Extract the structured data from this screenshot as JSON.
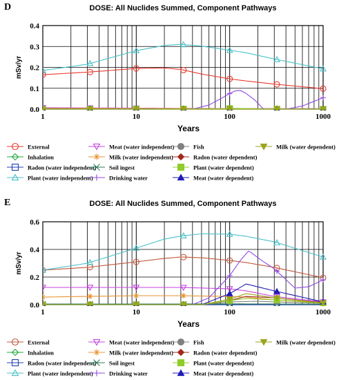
{
  "chart_data": [
    {
      "panel_letter": "D",
      "type": "line",
      "title": "DOSE: All Nuclides Summed, Component Pathways",
      "xlabel": "Years",
      "ylabel": "mSv/yr",
      "xscale": "log",
      "xlim": [
        1,
        1000
      ],
      "ylim": [
        0,
        0.4
      ],
      "x_ticks": [
        1,
        10,
        100,
        1000
      ],
      "y_ticks": [
        0.0,
        0.1,
        0.2,
        0.3,
        0.4
      ],
      "grid": true,
      "legend_position": "bottom",
      "series": [
        {
          "name": "External",
          "color": "#e8392f",
          "marker": "circle",
          "x": [
            1,
            3,
            10,
            20,
            30,
            50,
            100,
            150,
            300,
            1000
          ],
          "y": [
            0.165,
            0.177,
            0.195,
            0.197,
            0.19,
            0.168,
            0.145,
            0.135,
            0.12,
            0.098
          ]
        },
        {
          "name": "Inhalation",
          "color": "#1fa83a",
          "marker": "diamond",
          "x": [
            1,
            1000
          ],
          "y": [
            0.001,
            0.001
          ]
        },
        {
          "name": "Radon (water independent)",
          "color": "#1d3fb5",
          "marker": "square",
          "x": [
            1,
            1000
          ],
          "y": [
            0.0,
            0.0
          ]
        },
        {
          "name": "Plant (water independent)",
          "color": "#49c1c8",
          "marker": "triangle-up",
          "x": [
            1,
            3,
            10,
            20,
            30,
            50,
            100,
            150,
            300,
            1000
          ],
          "y": [
            0.185,
            0.215,
            0.28,
            0.305,
            0.31,
            0.302,
            0.282,
            0.27,
            0.24,
            0.193
          ]
        },
        {
          "name": "Meat (water independent)",
          "color": "#c645e0",
          "marker": "triangle-down",
          "x": [
            1,
            3,
            10,
            30,
            100,
            1000
          ],
          "y": [
            0.007,
            0.006,
            0.005,
            0.004,
            0.003,
            0.002
          ]
        },
        {
          "name": "Milk (water independent)",
          "color": "#e8932f",
          "marker": "asterisk",
          "x": [
            1,
            3,
            10,
            30,
            100,
            1000
          ],
          "y": [
            0.004,
            0.004,
            0.003,
            0.003,
            0.002,
            0.002
          ]
        },
        {
          "name": "Soil ingest",
          "color": "#2e7d57",
          "marker": "x",
          "x": [
            1,
            1000
          ],
          "y": [
            0.001,
            0.001
          ]
        },
        {
          "name": "Drinking water",
          "color": "#8f49e0",
          "marker": "plus",
          "x": [
            1,
            40,
            60,
            80,
            100,
            115,
            130,
            150,
            190,
            230,
            300,
            400,
            600,
            1000
          ],
          "y": [
            0.0,
            0.0,
            0.02,
            0.05,
            0.075,
            0.088,
            0.09,
            0.075,
            0.04,
            0.0,
            0.0,
            0.0,
            0.015,
            0.055
          ]
        },
        {
          "name": "Fish",
          "color": "#808080",
          "marker": "circle-filled",
          "x": [
            1,
            1000
          ],
          "y": [
            0.0,
            0.0
          ]
        },
        {
          "name": "Radon (water dependent)",
          "color": "#a0281c",
          "marker": "diamond-filled",
          "x": [
            1,
            1000
          ],
          "y": [
            0.0,
            0.0
          ]
        },
        {
          "name": "Plant (water dependent)",
          "color": "#8fcc2a",
          "marker": "square-filled",
          "x": [
            1,
            80,
            100,
            150,
            300,
            1000
          ],
          "y": [
            0.0,
            0.002,
            0.004,
            0.003,
            0.001,
            0.0
          ]
        },
        {
          "name": "Meat (water dependent)",
          "color": "#1f1ab5",
          "marker": "triangle-up-filled",
          "x": [
            1,
            1000
          ],
          "y": [
            0.0,
            0.0
          ]
        },
        {
          "name": "Milk (water dependent)",
          "color": "#9aa41d",
          "marker": "triangle-down-filled",
          "x": [
            1,
            1000
          ],
          "y": [
            0.0,
            0.0
          ]
        }
      ]
    },
    {
      "panel_letter": "E",
      "type": "line",
      "title": "DOSE: All Nuclides Summed, Component Pathways",
      "xlabel": "Years",
      "ylabel": "mSv/yr",
      "xscale": "log",
      "xlim": [
        1,
        1000
      ],
      "ylim": [
        0,
        0.6
      ],
      "x_ticks": [
        1,
        10,
        100,
        1000
      ],
      "y_ticks": [
        0.0,
        0.2,
        0.4,
        0.6
      ],
      "grid": true,
      "legend_position": "bottom",
      "series": [
        {
          "name": "External",
          "color": "#c0553a",
          "marker": "circle",
          "x": [
            1,
            3,
            10,
            20,
            30,
            50,
            100,
            150,
            300,
            1000
          ],
          "y": [
            0.25,
            0.27,
            0.31,
            0.335,
            0.345,
            0.34,
            0.32,
            0.305,
            0.27,
            0.195
          ]
        },
        {
          "name": "Inhalation",
          "color": "#1fa83a",
          "marker": "diamond",
          "x": [
            1,
            1000
          ],
          "y": [
            0.002,
            0.002
          ]
        },
        {
          "name": "Radon (water independent)",
          "color": "#1d3fb5",
          "marker": "square",
          "x": [
            1,
            1000
          ],
          "y": [
            0.0,
            0.0
          ]
        },
        {
          "name": "Plant (water independent)",
          "color": "#49c1c8",
          "marker": "triangle-up",
          "x": [
            1,
            3,
            10,
            20,
            30,
            50,
            100,
            150,
            300,
            1000
          ],
          "y": [
            0.25,
            0.3,
            0.41,
            0.475,
            0.497,
            0.513,
            0.51,
            0.495,
            0.455,
            0.345
          ]
        },
        {
          "name": "Meat (water independent)",
          "color": "#c645e0",
          "marker": "triangle-down",
          "x": [
            1,
            3,
            10,
            30,
            100,
            150,
            300,
            1000
          ],
          "y": [
            0.125,
            0.125,
            0.125,
            0.125,
            0.115,
            0.1,
            0.06,
            0.02
          ]
        },
        {
          "name": "Milk (water independent)",
          "color": "#e8932f",
          "marker": "asterisk",
          "x": [
            1,
            3,
            10,
            30,
            100,
            150,
            300,
            1000
          ],
          "y": [
            0.055,
            0.06,
            0.065,
            0.065,
            0.06,
            0.055,
            0.035,
            0.015
          ]
        },
        {
          "name": "Soil ingest",
          "color": "#2e7d57",
          "marker": "x",
          "x": [
            1,
            30,
            100,
            1000
          ],
          "y": [
            0.005,
            0.005,
            0.006,
            0.004
          ]
        },
        {
          "name": "Drinking water",
          "color": "#8f49e0",
          "marker": "plus",
          "x": [
            1,
            40,
            60,
            80,
            100,
            130,
            160,
            220,
            300,
            500,
            700,
            1000
          ],
          "y": [
            0.0,
            0.0,
            0.05,
            0.14,
            0.21,
            0.32,
            0.39,
            0.32,
            0.26,
            0.12,
            0.13,
            0.18
          ]
        },
        {
          "name": "Fish",
          "color": "#808080",
          "marker": "circle-filled",
          "x": [
            1,
            50,
            100,
            200,
            300,
            1000
          ],
          "y": [
            0.0,
            0.0,
            0.02,
            0.025,
            0.02,
            0.01
          ]
        },
        {
          "name": "Radon (water dependent)",
          "color": "#a0281c",
          "marker": "diamond-filled",
          "x": [
            1,
            50,
            100,
            150,
            300,
            1000
          ],
          "y": [
            0.0,
            0.0,
            0.03,
            0.06,
            0.05,
            0.015
          ]
        },
        {
          "name": "Plant (water dependent)",
          "color": "#8fcc2a",
          "marker": "square-filled",
          "x": [
            1,
            50,
            100,
            150,
            300,
            1000
          ],
          "y": [
            0.0,
            0.0,
            0.03,
            0.045,
            0.035,
            0.01
          ]
        },
        {
          "name": "Meat (water dependent)",
          "color": "#1f1ab5",
          "marker": "triangle-up-filled",
          "x": [
            1,
            50,
            100,
            150,
            300,
            1000
          ],
          "y": [
            0.0,
            0.0,
            0.08,
            0.15,
            0.1,
            0.02
          ]
        },
        {
          "name": "Milk (water dependent)",
          "color": "#9aa41d",
          "marker": "triangle-down-filled",
          "x": [
            1,
            50,
            100,
            150,
            300,
            1000
          ],
          "y": [
            0.0,
            0.0,
            0.04,
            0.08,
            0.05,
            0.012
          ]
        }
      ]
    }
  ]
}
